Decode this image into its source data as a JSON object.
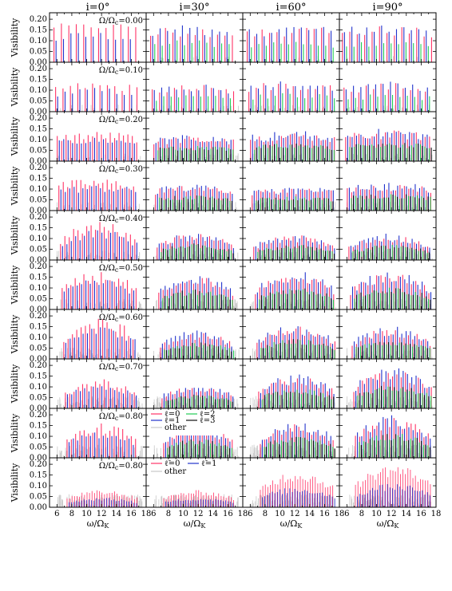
{
  "figure": {
    "columns": [
      "i=0°",
      "i=30°",
      "i=60°",
      "i=90°"
    ],
    "ylabel": "Visibility",
    "xlabel": "ω/Ω",
    "xlabel_sub": "K",
    "row_labels": [
      "Ω/Ω",
      "Ω/Ω",
      "Ω/Ω",
      "Ω/Ω",
      "Ω/Ω",
      "Ω/Ω",
      "Ω/Ω",
      "Ω/Ω",
      "Ω/Ω",
      "Ω/Ω"
    ],
    "row_label_sub": "c",
    "row_values": [
      "=0.00",
      "=0.10",
      "=0.20",
      "=0.30",
      "=0.40",
      "=0.50",
      "=0.60",
      "=0.70",
      "=0.80",
      "=0.80"
    ],
    "ytick_labels": [
      "0.00",
      "0.05",
      "0.10",
      "0.15",
      "0.20"
    ],
    "xtick_labels": [
      "6",
      "8",
      "10",
      "12",
      "14",
      "16",
      "18"
    ],
    "legend1": [
      "ℓ=0",
      "ℓ=1",
      "ℓ=2",
      "ℓ=3",
      "other"
    ],
    "legend2": [
      "ℓ̃=0",
      "ℓ̃=1",
      "other"
    ]
  },
  "chart_data": {
    "type": "bar",
    "layout": "grid of 10 rows by 4 columns; vertical spike spectra",
    "xlim": [
      5,
      18
    ],
    "ylim": [
      0,
      0.23
    ],
    "yticks": [
      0.0,
      0.05,
      0.1,
      0.15,
      0.2
    ],
    "xticks": [
      6,
      8,
      10,
      12,
      14,
      16,
      18
    ],
    "inclinations_deg": [
      0,
      30,
      60,
      90
    ],
    "rotation_rates": [
      0.0,
      0.1,
      0.2,
      0.3,
      0.4,
      0.5,
      0.6,
      0.7,
      0.8,
      0.8
    ],
    "colors": {
      "l0": "#ff3366",
      "l1": "#2233cc",
      "l2": "#22cc55",
      "l3": "#111111",
      "other": "#c8c8c8"
    },
    "series_note": "Each panel shows visibility spikes for ℓ=0 (red), ℓ=1 (blue), ℓ=2 (green), ℓ=3 (black) and other modes (grey) versus ω/Ω_K; last row uses ℓ̃=0 (red), ℓ̃=1 (blue) and other (grey).",
    "peak_visibility_estimates": [
      [
        0.18,
        0.19,
        0.19,
        0.19
      ],
      [
        0.14,
        0.14,
        0.16,
        0.15
      ],
      [
        0.14,
        0.13,
        0.15,
        0.16
      ],
      [
        0.15,
        0.13,
        0.12,
        0.14
      ],
      [
        0.18,
        0.14,
        0.13,
        0.13
      ],
      [
        0.18,
        0.17,
        0.19,
        0.19
      ],
      [
        0.19,
        0.14,
        0.17,
        0.16
      ],
      [
        0.14,
        0.12,
        0.17,
        0.2
      ],
      [
        0.16,
        0.16,
        0.18,
        0.21
      ],
      [
        0.08,
        0.08,
        0.17,
        0.2
      ]
    ]
  }
}
